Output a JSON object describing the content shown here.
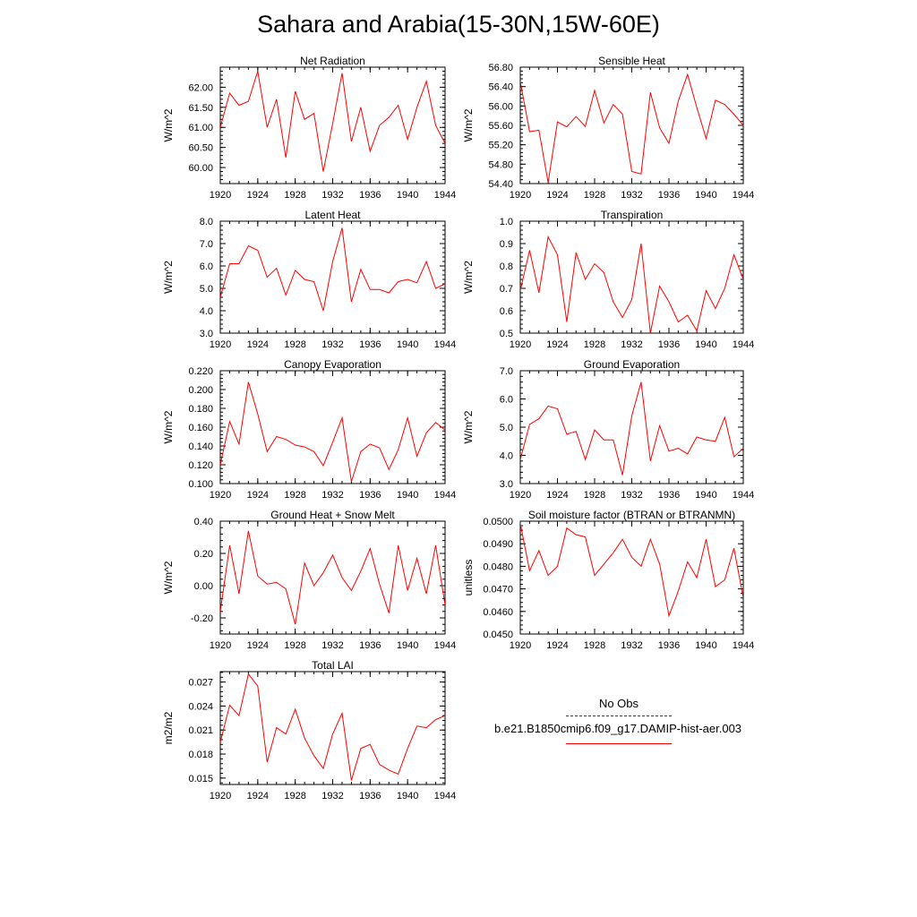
{
  "title": "Sahara and Arabia(15-30N,15W-60E)",
  "legend": {
    "obs_label": "No Obs",
    "obs_color": "#2a2ab0",
    "model_label": "b.e21.B1850cmip6.f09_g17.DAMIP-hist-aer.003",
    "model_color": "#ff0000"
  },
  "chart_data": [
    {
      "id": "net-radiation",
      "type": "line",
      "title": "Net Radiation",
      "ylabel": "W/m^2",
      "xlim": [
        1920,
        1944
      ],
      "ylim": [
        59.6,
        62.5
      ],
      "x_ticks": [
        1920,
        1924,
        1928,
        1932,
        1936,
        1940,
        1944
      ],
      "y_ticks": [
        "60.00",
        "60.50",
        "61.00",
        "61.50",
        "62.00"
      ],
      "series": [
        {
          "x": [
            1920,
            1921,
            1922,
            1923,
            1924,
            1925,
            1926,
            1927,
            1928,
            1929,
            1930,
            1931,
            1932,
            1933,
            1934,
            1935,
            1936,
            1937,
            1938,
            1939,
            1940,
            1941,
            1942,
            1943,
            1944
          ],
          "values": [
            61.0,
            61.85,
            61.55,
            61.65,
            62.4,
            61.0,
            61.7,
            60.25,
            61.9,
            61.2,
            61.35,
            59.9,
            61.1,
            62.35,
            60.65,
            61.5,
            60.4,
            61.05,
            61.25,
            61.55,
            60.7,
            61.5,
            62.15,
            61.05,
            60.6
          ]
        }
      ]
    },
    {
      "id": "sensible-heat",
      "type": "line",
      "title": "Sensible Heat",
      "ylabel": "W/m^2",
      "xlim": [
        1920,
        1944
      ],
      "ylim": [
        54.4,
        56.8
      ],
      "x_ticks": [
        1920,
        1924,
        1928,
        1932,
        1936,
        1940,
        1944
      ],
      "y_ticks": [
        "54.40",
        "54.80",
        "55.20",
        "55.60",
        "56.00",
        "56.40",
        "56.80"
      ],
      "series": [
        {
          "x": [
            1920,
            1921,
            1922,
            1923,
            1924,
            1925,
            1926,
            1927,
            1928,
            1929,
            1930,
            1931,
            1932,
            1933,
            1934,
            1935,
            1936,
            1937,
            1938,
            1939,
            1940,
            1941,
            1942,
            1943,
            1944
          ],
          "values": [
            56.5,
            55.47,
            55.5,
            54.42,
            55.67,
            55.57,
            55.78,
            55.58,
            56.32,
            55.65,
            56.03,
            55.83,
            54.65,
            54.6,
            56.28,
            55.55,
            55.23,
            56.1,
            56.65,
            55.97,
            55.33,
            56.12,
            56.03,
            55.83,
            55.6
          ]
        }
      ]
    },
    {
      "id": "latent-heat",
      "type": "line",
      "title": "Latent Heat",
      "ylabel": "W/m^2",
      "xlim": [
        1920,
        1944
      ],
      "ylim": [
        3.0,
        8.0
      ],
      "x_ticks": [
        1920,
        1924,
        1928,
        1932,
        1936,
        1940,
        1944
      ],
      "y_ticks": [
        "3.0",
        "4.0",
        "5.0",
        "6.0",
        "7.0",
        "8.0"
      ],
      "series": [
        {
          "x": [
            1920,
            1921,
            1922,
            1923,
            1924,
            1925,
            1926,
            1927,
            1928,
            1929,
            1930,
            1931,
            1932,
            1933,
            1934,
            1935,
            1936,
            1937,
            1938,
            1939,
            1940,
            1941,
            1942,
            1943,
            1944
          ],
          "values": [
            4.6,
            6.1,
            6.1,
            6.9,
            6.7,
            5.5,
            5.9,
            4.7,
            5.8,
            5.4,
            5.3,
            4.0,
            6.2,
            7.7,
            4.4,
            5.85,
            4.95,
            4.95,
            4.8,
            5.3,
            5.4,
            5.25,
            6.2,
            5.0,
            5.2
          ]
        }
      ]
    },
    {
      "id": "transpiration",
      "type": "line",
      "title": "Transpiration",
      "ylabel": "W/m^2",
      "xlim": [
        1920,
        1944
      ],
      "ylim": [
        0.5,
        1.0
      ],
      "x_ticks": [
        1920,
        1924,
        1928,
        1932,
        1936,
        1940,
        1944
      ],
      "y_ticks": [
        "0.5",
        "0.6",
        "0.7",
        "0.8",
        "0.9",
        "1.0"
      ],
      "series": [
        {
          "x": [
            1920,
            1921,
            1922,
            1923,
            1924,
            1925,
            1926,
            1927,
            1928,
            1929,
            1930,
            1931,
            1932,
            1933,
            1934,
            1935,
            1936,
            1937,
            1938,
            1939,
            1940,
            1941,
            1942,
            1943,
            1944
          ],
          "values": [
            0.69,
            0.87,
            0.68,
            0.93,
            0.85,
            0.55,
            0.86,
            0.74,
            0.81,
            0.77,
            0.64,
            0.57,
            0.65,
            0.9,
            0.5,
            0.71,
            0.64,
            0.55,
            0.58,
            0.51,
            0.69,
            0.61,
            0.7,
            0.85,
            0.74
          ]
        }
      ]
    },
    {
      "id": "canopy-evaporation",
      "type": "line",
      "title": "Canopy Evaporation",
      "ylabel": "W/m^2",
      "xlim": [
        1920,
        1944
      ],
      "ylim": [
        0.1,
        0.22
      ],
      "x_ticks": [
        1920,
        1924,
        1928,
        1932,
        1936,
        1940,
        1944
      ],
      "y_ticks": [
        "0.100",
        "0.120",
        "0.140",
        "0.160",
        "0.180",
        "0.200",
        "0.220"
      ],
      "series": [
        {
          "x": [
            1920,
            1921,
            1922,
            1923,
            1924,
            1925,
            1926,
            1927,
            1928,
            1929,
            1930,
            1931,
            1932,
            1933,
            1934,
            1935,
            1936,
            1937,
            1938,
            1939,
            1940,
            1941,
            1942,
            1943,
            1944
          ],
          "values": [
            0.12,
            0.166,
            0.142,
            0.208,
            0.174,
            0.134,
            0.15,
            0.147,
            0.141,
            0.139,
            0.134,
            0.119,
            0.144,
            0.17,
            0.102,
            0.134,
            0.142,
            0.138,
            0.115,
            0.136,
            0.17,
            0.129,
            0.154,
            0.165,
            0.157
          ]
        }
      ]
    },
    {
      "id": "ground-evaporation",
      "type": "line",
      "title": "Ground Evaporation",
      "ylabel": "W/m^2",
      "xlim": [
        1920,
        1944
      ],
      "ylim": [
        3.0,
        7.0
      ],
      "x_ticks": [
        1920,
        1924,
        1928,
        1932,
        1936,
        1940,
        1944
      ],
      "y_ticks": [
        "3.0",
        "4.0",
        "5.0",
        "6.0",
        "7.0"
      ],
      "series": [
        {
          "x": [
            1920,
            1921,
            1922,
            1923,
            1924,
            1925,
            1926,
            1927,
            1928,
            1929,
            1930,
            1931,
            1932,
            1933,
            1934,
            1935,
            1936,
            1937,
            1938,
            1939,
            1940,
            1941,
            1942,
            1943,
            1944
          ],
          "values": [
            3.85,
            5.1,
            5.3,
            5.75,
            5.65,
            4.75,
            4.85,
            3.85,
            4.9,
            4.55,
            4.55,
            3.3,
            5.4,
            6.6,
            3.8,
            5.05,
            4.15,
            4.25,
            4.05,
            4.65,
            4.55,
            4.5,
            5.35,
            3.95,
            4.25
          ]
        }
      ]
    },
    {
      "id": "ground-heat-snow-melt",
      "type": "line",
      "title": "Ground Heat + Snow Melt",
      "ylabel": "W/m^2",
      "xlim": [
        1920,
        1944
      ],
      "ylim": [
        -0.3,
        0.4
      ],
      "x_ticks": [
        1920,
        1924,
        1928,
        1932,
        1936,
        1940,
        1944
      ],
      "y_ticks": [
        "-0.20",
        "0.00",
        "0.20",
        "0.40"
      ],
      "series": [
        {
          "x": [
            1920,
            1921,
            1922,
            1923,
            1924,
            1925,
            1926,
            1927,
            1928,
            1929,
            1930,
            1931,
            1932,
            1933,
            1934,
            1935,
            1936,
            1937,
            1938,
            1939,
            1940,
            1941,
            1942,
            1943,
            1944
          ],
          "values": [
            -0.16,
            0.25,
            -0.05,
            0.34,
            0.06,
            0.01,
            0.02,
            -0.02,
            -0.24,
            0.14,
            0.0,
            0.08,
            0.19,
            0.05,
            -0.03,
            0.09,
            0.23,
            0.01,
            -0.17,
            0.25,
            -0.03,
            0.17,
            -0.05,
            0.25,
            -0.12
          ]
        }
      ]
    },
    {
      "id": "soil-moisture-factor",
      "type": "line",
      "title": "Soil moisture factor (BTRAN or BTRANMN)",
      "ylabel": "unitless",
      "xlim": [
        1920,
        1944
      ],
      "ylim": [
        0.045,
        0.05
      ],
      "x_ticks": [
        1920,
        1924,
        1928,
        1932,
        1936,
        1940,
        1944
      ],
      "y_ticks": [
        "0.0450",
        "0.0460",
        "0.0470",
        "0.0480",
        "0.0490",
        "0.0500"
      ],
      "series": [
        {
          "x": [
            1920,
            1921,
            1922,
            1923,
            1924,
            1925,
            1926,
            1927,
            1928,
            1929,
            1930,
            1931,
            1932,
            1933,
            1934,
            1935,
            1936,
            1937,
            1938,
            1939,
            1940,
            1941,
            1942,
            1943,
            1944
          ],
          "values": [
            0.0499,
            0.0478,
            0.0487,
            0.0476,
            0.048,
            0.0497,
            0.0494,
            0.0493,
            0.0476,
            0.0481,
            0.0486,
            0.0492,
            0.0484,
            0.048,
            0.0492,
            0.0481,
            0.0458,
            0.0469,
            0.0482,
            0.0475,
            0.0492,
            0.0471,
            0.0474,
            0.0488,
            0.0466
          ]
        }
      ]
    },
    {
      "id": "total-lai",
      "type": "line",
      "title": "Total LAI",
      "ylabel": "m2/m2",
      "xlim": [
        1920,
        1944
      ],
      "ylim": [
        0.0142,
        0.0283
      ],
      "x_ticks": [
        1920,
        1924,
        1928,
        1932,
        1936,
        1940,
        1944
      ],
      "y_ticks": [
        "0.015",
        "0.018",
        "0.021",
        "0.024",
        "0.027"
      ],
      "series": [
        {
          "x": [
            1920,
            1921,
            1922,
            1923,
            1924,
            1925,
            1926,
            1927,
            1928,
            1929,
            1930,
            1931,
            1932,
            1933,
            1934,
            1935,
            1936,
            1937,
            1938,
            1939,
            1940,
            1941,
            1942,
            1943,
            1944
          ],
          "values": [
            0.0195,
            0.0241,
            0.0228,
            0.028,
            0.0265,
            0.017,
            0.0213,
            0.0205,
            0.0236,
            0.02,
            0.0178,
            0.0162,
            0.0205,
            0.0231,
            0.0147,
            0.0187,
            0.0192,
            0.0167,
            0.016,
            0.0155,
            0.0187,
            0.0215,
            0.0213,
            0.0223,
            0.0228
          ]
        }
      ]
    }
  ]
}
